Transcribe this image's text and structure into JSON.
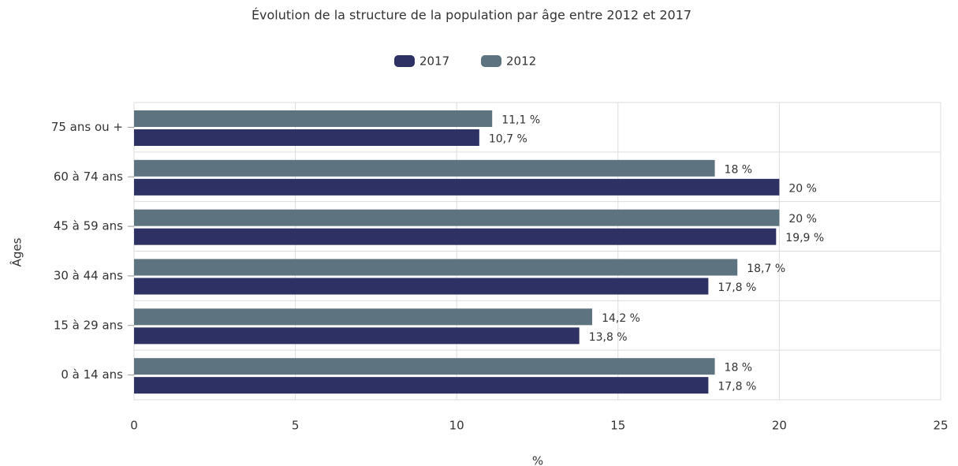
{
  "chart_data": {
    "type": "hbar",
    "title": "Évolution de la structure de la population par âge entre 2012 et 2017",
    "x_label": "%",
    "y_label": "Âges",
    "categories": [
      "75 ans ou +",
      "60 à 74 ans",
      "45 à 59 ans",
      "30 à 44 ans",
      "15 à 29 ans",
      "0 à 14 ans"
    ],
    "series": [
      {
        "name": "2017",
        "color": "#2e3163",
        "values": [
          10.7,
          20,
          19.9,
          17.8,
          13.8,
          17.8
        ],
        "value_labels": [
          "10,7 %",
          "20 %",
          "19,9 %",
          "17,8 %",
          "13,8 %",
          "17,8 %"
        ]
      },
      {
        "name": "2012",
        "color": "#5d7480",
        "values": [
          11.1,
          18,
          20,
          18.7,
          14.2,
          18
        ],
        "value_labels": [
          "11,1 %",
          "18 %",
          "20 %",
          "18,7 %",
          "14,2 %",
          "18 %"
        ]
      }
    ],
    "xlim": [
      0,
      25
    ],
    "xticks": [
      0,
      5,
      10,
      15,
      20,
      25
    ],
    "grid": true,
    "legend": "top"
  }
}
